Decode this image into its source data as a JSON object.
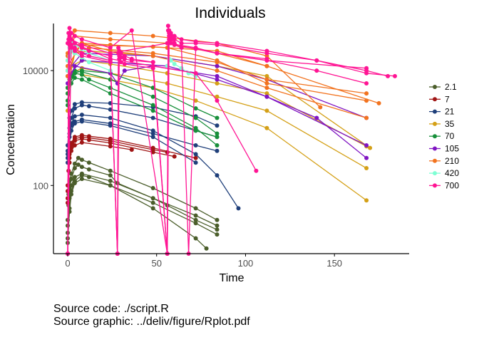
{
  "chart_data": {
    "type": "line",
    "title": "Individuals",
    "xlabel": "Time",
    "ylabel": "Concentration",
    "y_scale": "log10",
    "xlim": [
      -8,
      192
    ],
    "ylim": [
      6.5,
      66000
    ],
    "x_ticks": [
      0,
      50,
      100,
      150
    ],
    "y_ticks": [
      100,
      10000
    ],
    "grid": false,
    "legend": {
      "position": "right"
    },
    "series": [
      {
        "name": "2.1",
        "color": "#4B5E2B",
        "profiles": [
          {
            "x": [
              0,
              0.5,
              1,
              2,
              4,
              6,
              8,
              12,
              24,
              28,
              48,
              56,
              72,
              84
            ],
            "y": [
              15,
              45,
              90,
              130,
              200,
              230,
              210,
              190,
              150,
              110,
              60,
              45,
              25,
              17
            ]
          },
          {
            "x": [
              0,
              0.5,
              1,
              2,
              4,
              6,
              8,
              12,
              24,
              48,
              72,
              84
            ],
            "y": [
              25,
              70,
              120,
              160,
              240,
              300,
              280,
              250,
              180,
              90,
              40,
              25
            ]
          },
          {
            "x": [
              0,
              1,
              2,
              4,
              8,
              12,
              24,
              48,
              72,
              84
            ],
            "y": [
              10,
              40,
              80,
              120,
              150,
              140,
              100,
              50,
              22,
              14
            ]
          },
          {
            "x": [
              0,
              1,
              2,
              4,
              8,
              24,
              48,
              72,
              84
            ],
            "y": [
              20,
              60,
              100,
              140,
              160,
              120,
              60,
              30,
              20
            ]
          },
          {
            "x": [
              0,
              1,
              2,
              4,
              8,
              24,
              48,
              72,
              78
            ],
            "y": [
              12,
              35,
              70,
              110,
              130,
              100,
              40,
              12,
              8
            ]
          }
        ]
      },
      {
        "name": "7",
        "color": "#A01515",
        "profiles": [
          {
            "x": [
              0,
              0.5,
              1,
              2,
              4,
              8,
              12,
              24,
              48,
              72
            ],
            "y": [
              50,
              180,
              350,
              550,
              700,
              750,
              720,
              650,
              450,
              300
            ]
          },
          {
            "x": [
              0,
              1,
              2,
              4,
              8,
              12,
              24,
              48,
              60
            ],
            "y": [
              80,
              300,
              450,
              600,
              650,
              620,
              550,
              380,
              320
            ]
          },
          {
            "x": [
              0,
              1,
              2,
              4,
              8,
              24,
              48,
              56
            ],
            "y": [
              100,
              350,
              500,
              650,
              700,
              600,
              420,
              380
            ]
          },
          {
            "x": [
              0,
              1,
              2,
              4,
              8,
              24,
              36
            ],
            "y": [
              60,
              250,
              400,
              500,
              560,
              480,
              420
            ]
          }
        ]
      },
      {
        "name": "21",
        "color": "#1F3F7A",
        "profiles": [
          {
            "x": [
              0,
              1,
              2,
              4,
              8,
              24,
              48,
              72,
              84,
              96
            ],
            "y": [
              300,
              800,
              1200,
              1600,
              1700,
              1500,
              900,
              350,
              150,
              40
            ]
          },
          {
            "x": [
              0,
              1,
              2,
              4,
              8,
              12,
              24,
              48,
              72,
              84
            ],
            "y": [
              400,
              1000,
              1500,
              2200,
              2500,
              2400,
              2100,
              1500,
              900,
              700
            ]
          },
          {
            "x": [
              0,
              1,
              2,
              4,
              8,
              24,
              48,
              72,
              84
            ],
            "y": [
              250,
              700,
              1100,
              1300,
              1400,
              1200,
              800,
              500,
              400
            ]
          },
          {
            "x": [
              0,
              1,
              2,
              4,
              8,
              24,
              48,
              72,
              84
            ],
            "y": [
              500,
              1500,
              2000,
              2600,
              2800,
              2700,
              2300,
              1600,
              1100
            ]
          },
          {
            "x": [
              0,
              2,
              4,
              8,
              24,
              48,
              72
            ],
            "y": [
              350,
              900,
              1200,
              1300,
              1100,
              700,
              250
            ]
          }
        ]
      },
      {
        "name": "35",
        "color": "#D4A017",
        "profiles": [
          {
            "x": [
              0,
              1,
              4,
              8,
              24,
              48,
              72,
              112,
              168
            ],
            "y": [
              2000,
              6000,
              9000,
              8500,
              7000,
              5000,
              3000,
              1000,
              55
            ]
          },
          {
            "x": [
              0,
              2,
              8,
              24,
              56,
              84,
              112,
              168
            ],
            "y": [
              3000,
              9000,
              11000,
              9000,
              6000,
              3500,
              2000,
              200
            ]
          },
          {
            "x": [
              0,
              2,
              8,
              24,
              56,
              84,
              112,
              168
            ],
            "y": [
              4000,
              12000,
              15000,
              13000,
              9000,
              6000,
              4000,
              480
            ]
          },
          {
            "x": [
              0,
              4,
              12,
              48,
              84,
              112,
              170
            ],
            "y": [
              5000,
              20000,
              22000,
              18000,
              12000,
              8000,
              450
            ]
          }
        ]
      },
      {
        "name": "70",
        "color": "#178F3A",
        "profiles": [
          {
            "x": [
              0,
              1,
              2,
              4,
              8,
              12,
              24,
              48,
              72,
              84
            ],
            "y": [
              3000,
              7000,
              8000,
              9000,
              8500,
              7000,
              5000,
              2500,
              1000,
              500
            ]
          },
          {
            "x": [
              0,
              2,
              4,
              8,
              24,
              48,
              72,
              84
            ],
            "y": [
              4000,
              8000,
              10000,
              9500,
              7000,
              3500,
              1500,
              800
            ]
          },
          {
            "x": [
              0,
              2,
              4,
              8,
              24,
              48,
              72,
              84
            ],
            "y": [
              2500,
              6000,
              7500,
              7000,
              4000,
              2000,
              900,
              700
            ]
          },
          {
            "x": [
              0,
              4,
              8,
              24,
              48,
              72,
              84
            ],
            "y": [
              5000,
              9000,
              10000,
              9000,
              5000,
              2200,
              1500
            ]
          }
        ]
      },
      {
        "name": "105",
        "color": "#8015C2",
        "profiles": [
          {
            "x": [
              0,
              4,
              24,
              28,
              32,
              48,
              84,
              112,
              140,
              168
            ],
            "y": [
              6000,
              12000,
              9000,
              6000,
              10000,
              12000,
              8000,
              3500,
              1500,
              300
            ]
          },
          {
            "x": [
              0,
              8,
              56,
              84,
              112,
              168
            ],
            "y": [
              8000,
              15000,
              12000,
              7000,
              3500,
              500
            ]
          },
          {
            "x": [
              0,
              8,
              48,
              84,
              112,
              168
            ],
            "y": [
              10000,
              20000,
              18000,
              12000,
              7000,
              1500
            ]
          }
        ]
      },
      {
        "name": "210",
        "color": "#F2731F",
        "profiles": [
          {
            "x": [
              0,
              2,
              8,
              24,
              48,
              84,
              112,
              168
            ],
            "y": [
              10000,
              25000,
              30000,
              22000,
              18000,
              10000,
              5000,
              1500
            ]
          },
          {
            "x": [
              0,
              4,
              12,
              48,
              84,
              112,
              168
            ],
            "y": [
              8000,
              20000,
              25000,
              20000,
              14000,
              7000,
              4000
            ]
          },
          {
            "x": [
              0,
              4,
              24,
              56,
              84,
              112,
              175
            ],
            "y": [
              15000,
              40000,
              35000,
              30000,
              20000,
              12000,
              2700
            ]
          },
          {
            "x": [
              0,
              8,
              24,
              56,
              84,
              112,
              168
            ],
            "y": [
              12000,
              30000,
              28000,
              25000,
              15000,
              6000,
              3000
            ]
          },
          {
            "x": [
              0,
              4,
              24,
              48,
              84,
              112,
              142
            ],
            "y": [
              20000,
              50000,
              45000,
              40000,
              30000,
              18000,
              2300
            ]
          },
          {
            "x": [
              0,
              8,
              48,
              84,
              112
            ],
            "y": [
              18000,
              28000,
              26000,
              22000,
              12000
            ]
          }
        ]
      },
      {
        "name": "420",
        "color": "#7FFFD4",
        "profiles": [
          {
            "x": [
              0,
              1,
              2,
              4,
              8,
              12,
              24
            ],
            "y": [
              15000,
              25000,
              30000,
              28000,
              24000,
              20000,
              15000
            ]
          },
          {
            "x": [
              0,
              1,
              2,
              4,
              8,
              12,
              24
            ],
            "y": [
              10000,
              18000,
              22000,
              20000,
              17000,
              14000,
              10000
            ]
          },
          {
            "x": [
              56,
              57,
              58,
              60,
              64,
              68,
              72
            ],
            "y": [
              12000,
              16000,
              15000,
              13000,
              11000,
              9000,
              8000
            ]
          }
        ]
      },
      {
        "name": "700",
        "color": "#FF1493",
        "profiles": [
          {
            "x": [
              0,
              0.5,
              1,
              2,
              4,
              8,
              12,
              24,
              28,
              28.5,
              29,
              30,
              32,
              36,
              48,
              56,
              56.5,
              57,
              58,
              60,
              64,
              72,
              84,
              112,
              140,
              168,
              180
            ],
            "y": [
              0,
              35000,
              30000,
              28000,
              25000,
              20000,
              18000,
              15000,
              0,
              20000,
              18000,
              17000,
              16000,
              15000,
              14000,
              0,
              50000,
              45000,
              40000,
              35000,
              30000,
              30000,
              28000,
              20000,
              15000,
              10000,
              8000
            ]
          },
          {
            "x": [
              0,
              0.5,
              1,
              2,
              4,
              8,
              12,
              24,
              28,
              28.5,
              29,
              30,
              32,
              36,
              48,
              56,
              56.5,
              57,
              58,
              60,
              64,
              72,
              84,
              112,
              140,
              168,
              184
            ],
            "y": [
              0,
              45000,
              40000,
              35000,
              30000,
              25000,
              22000,
              18000,
              0,
              25000,
              22000,
              20000,
              18000,
              16000,
              14000,
              0,
              60000,
              50000,
              45000,
              40000,
              35000,
              32000,
              30000,
              22000,
              15000,
              9000,
              8000
            ]
          },
          {
            "x": [
              0,
              1,
              2,
              4,
              8,
              24,
              28,
              29,
              30,
              32,
              48,
              56,
              57,
              58,
              60,
              64,
              68,
              72,
              84,
              112,
              140,
              168
            ],
            "y": [
              0,
              28000,
              25000,
              22000,
              18000,
              14000,
              0,
              16000,
              14000,
              13000,
              11000,
              0,
              35000,
              30000,
              28000,
              25000,
              0,
              24000,
              20000,
              15000,
              10000,
              6000
            ]
          },
          {
            "x": [
              0,
              1,
              2,
              4,
              8,
              24,
              36,
              56,
              57,
              58,
              60,
              64,
              72,
              84,
              112
            ],
            "y": [
              0,
              55000,
              45000,
              40000,
              35000,
              25000,
              50000,
              0,
              40000,
              35000,
              30000,
              26000,
              24000,
              20000,
              16000
            ]
          },
          {
            "x": [
              0,
              2,
              8,
              24,
              56,
              72,
              84,
              112,
              168
            ],
            "y": [
              0,
              35000,
              28000,
              20000,
              30000,
              25000,
              20000,
              15000,
              11000
            ]
          },
          {
            "x": [
              0,
              1,
              4,
              8,
              24,
              48,
              72,
              84,
              106
            ],
            "y": [
              30000,
              38000,
              30000,
              26000,
              16000,
              12000,
              9000,
              3000,
              180
            ]
          }
        ]
      }
    ]
  },
  "caption": {
    "line1": "Source code: ./script.R",
    "line2": "Source graphic: ../deliv/figure/Rplot.pdf"
  }
}
